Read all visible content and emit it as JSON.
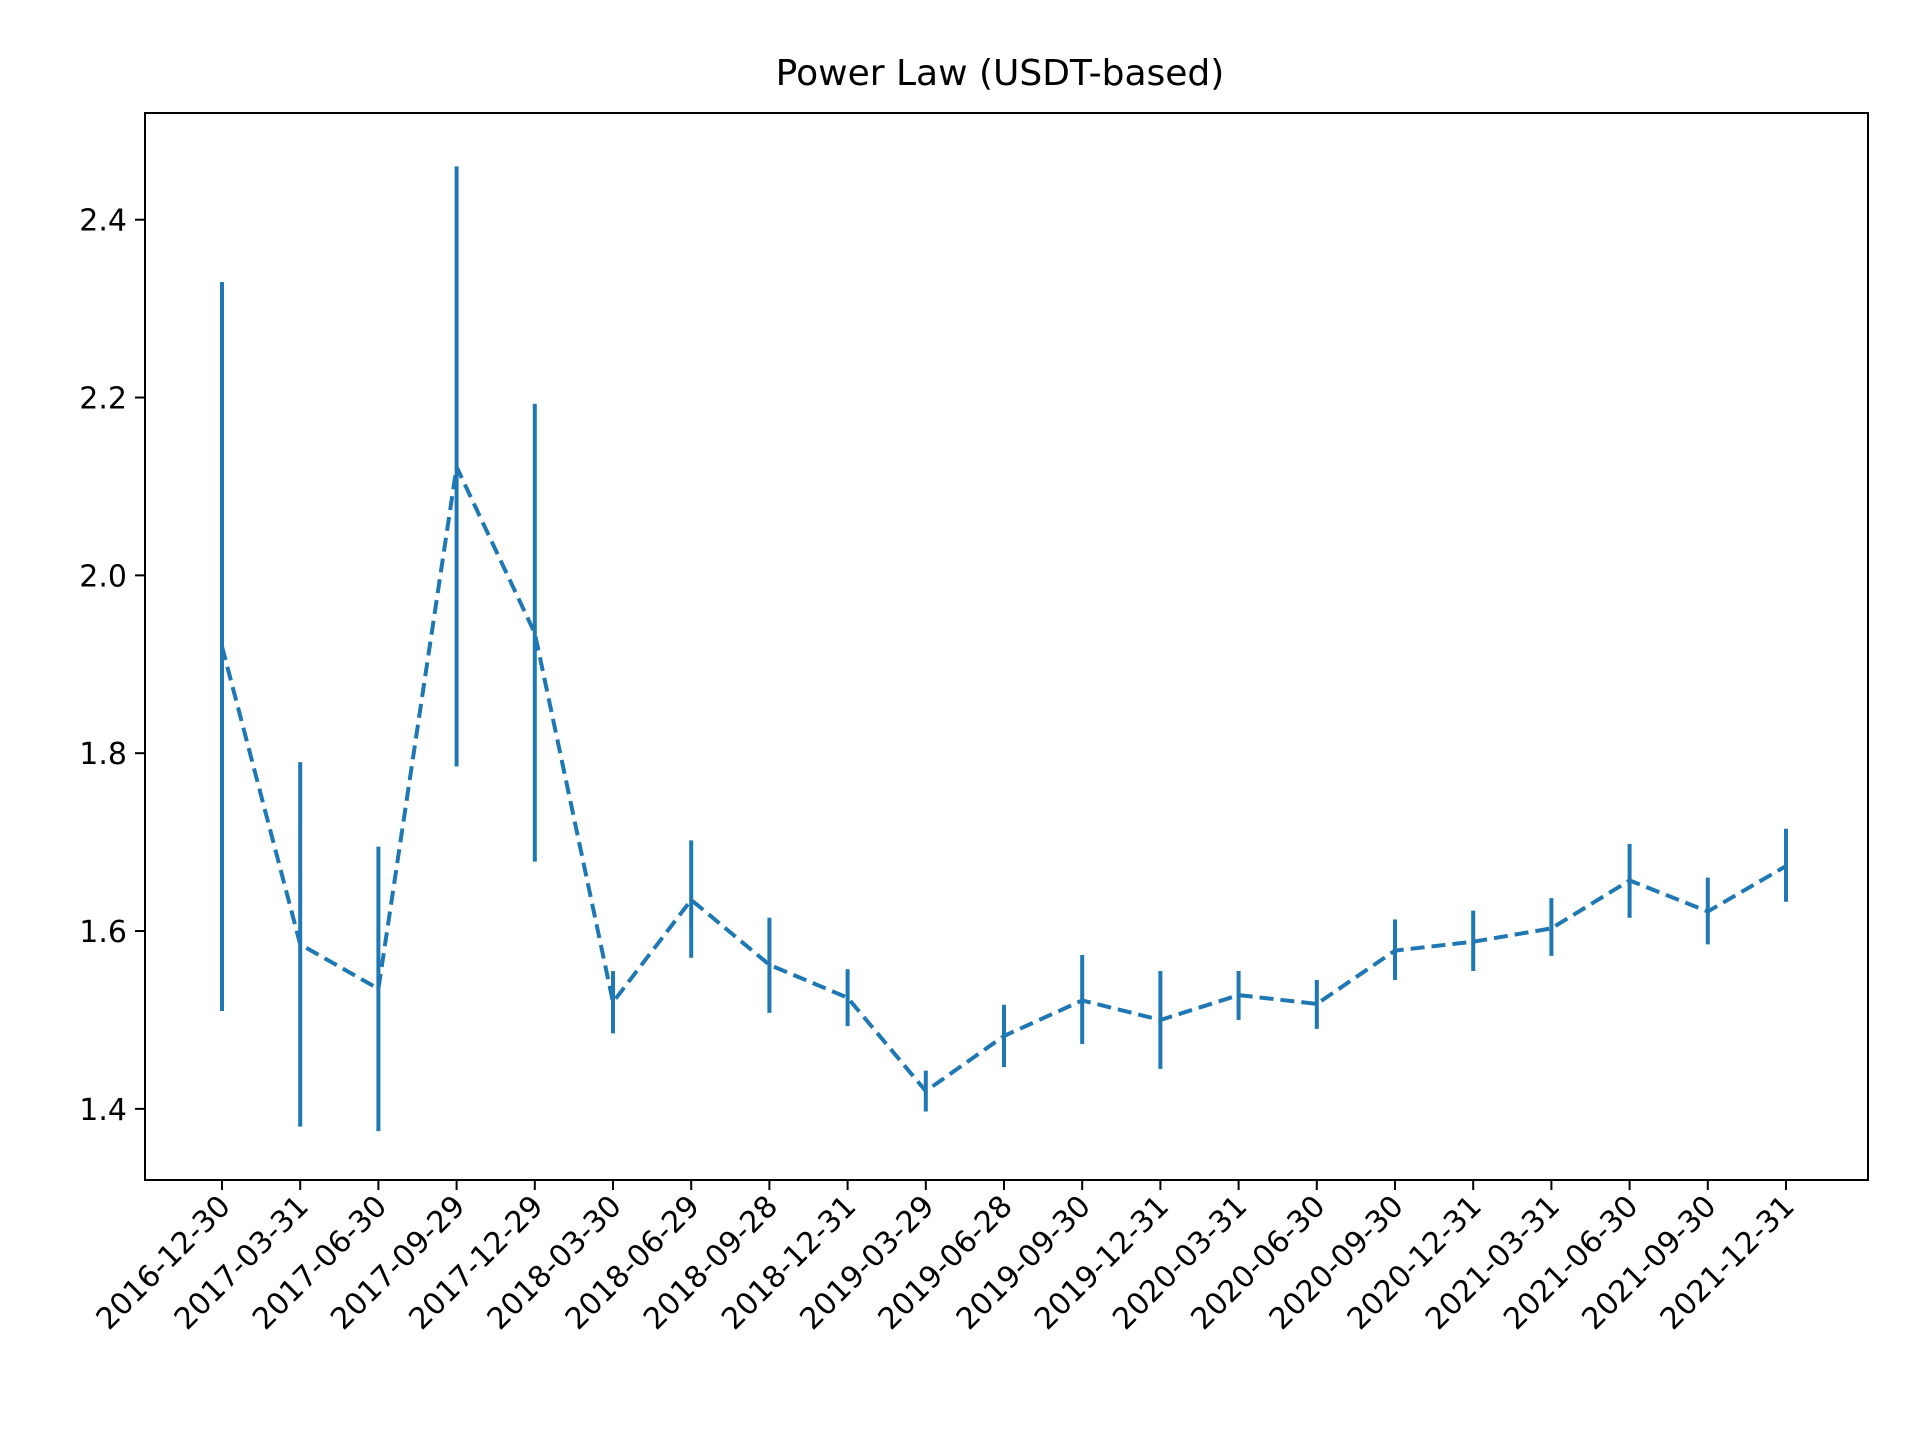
{
  "chart_data": {
    "type": "line",
    "title": "Power Law (USDT-based)",
    "xlabel": "",
    "ylabel": "",
    "categories": [
      "2016-12-30",
      "2017-03-31",
      "2017-06-30",
      "2017-09-29",
      "2017-12-29",
      "2018-03-30",
      "2018-06-29",
      "2018-09-28",
      "2018-12-31",
      "2019-03-29",
      "2019-06-28",
      "2019-09-30",
      "2019-12-31",
      "2020-03-31",
      "2020-06-30",
      "2020-09-30",
      "2020-12-31",
      "2021-03-31",
      "2021-06-30",
      "2021-09-30",
      "2021-12-31"
    ],
    "series": [
      {
        "values": [
          1.92,
          1.585,
          1.535,
          2.122,
          1.935,
          1.52,
          1.635,
          1.562,
          1.525,
          1.42,
          1.482,
          1.522,
          1.5,
          1.528,
          1.518,
          1.578,
          1.588,
          1.603,
          1.657,
          1.622,
          1.673
        ],
        "err_low": [
          1.51,
          1.38,
          1.375,
          1.785,
          1.678,
          1.485,
          1.57,
          1.508,
          1.493,
          1.397,
          1.447,
          1.473,
          1.445,
          1.5,
          1.49,
          1.545,
          1.555,
          1.572,
          1.615,
          1.585,
          1.633
        ],
        "err_high": [
          2.33,
          1.79,
          1.695,
          2.46,
          2.193,
          1.555,
          1.702,
          1.615,
          1.557,
          1.443,
          1.517,
          1.573,
          1.555,
          1.555,
          1.545,
          1.613,
          1.623,
          1.637,
          1.698,
          1.66,
          1.715
        ],
        "color": "#1f77b4",
        "line_style": "dashed"
      }
    ],
    "ylim": [
      1.32,
      2.52
    ],
    "yticks": [
      1.4,
      1.6,
      1.8,
      2.0,
      2.2,
      2.4
    ],
    "ytick_labels": [
      "1.4",
      "1.6",
      "1.8",
      "2.0",
      "2.2",
      "2.4"
    ],
    "grid": false,
    "legend": "none"
  }
}
